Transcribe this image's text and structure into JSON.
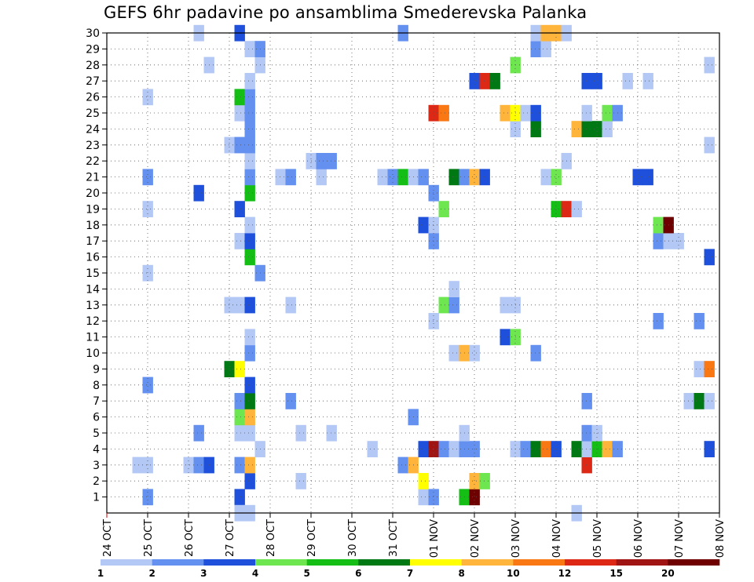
{
  "chart_data": {
    "type": "heatmap",
    "title": "GEFS 6hr padavine po ansamblima Smederevska Palanka",
    "xlabel": "",
    "ylabel": "",
    "x_ticks": [
      "24 OCT",
      "25 OCT",
      "26 OCT",
      "27 OCT",
      "28 OCT",
      "29 OCT",
      "30 OCT",
      "31 OCT",
      "01 NOV",
      "02 NOV",
      "03 NOV",
      "04 NOV",
      "05 NOV",
      "06 NOV",
      "07 NOV",
      "08 NOV"
    ],
    "y_ticks": [
      "1",
      "2",
      "3",
      "4",
      "5",
      "6",
      "7",
      "8",
      "9",
      "10",
      "11",
      "12",
      "13",
      "14",
      "15",
      "16",
      "17",
      "18",
      "19",
      "20",
      "21",
      "22",
      "23",
      "24",
      "25",
      "26",
      "27",
      "28",
      "29",
      "30"
    ],
    "x_range_days": [
      0,
      15
    ],
    "y_range": [
      0,
      30
    ],
    "grid": true,
    "colorbar": {
      "colors": [
        "#b4c8f5",
        "#6490f0",
        "#1e50dc",
        "#6ee650",
        "#14be14",
        "#007814",
        "#ffff00",
        "#ffb43c",
        "#fa7814",
        "#dc2814",
        "#a01414",
        "#6e0000"
      ],
      "labels": [
        "1",
        "2",
        "3",
        "4",
        "5",
        "6",
        "7",
        "8",
        "10",
        "12",
        "15",
        "20"
      ]
    },
    "cells": [
      {
        "day": 1.0,
        "m": 1,
        "c": 1
      },
      {
        "day": 3.25,
        "m": 1,
        "c": 2
      },
      {
        "day": 7.75,
        "m": 1,
        "c": 0
      },
      {
        "day": 8.0,
        "m": 1,
        "c": 1
      },
      {
        "day": 8.75,
        "m": 1,
        "c": 4
      },
      {
        "day": 9.0,
        "m": 1,
        "c": 11
      },
      {
        "day": 3.5,
        "m": 2,
        "c": 2
      },
      {
        "day": 4.75,
        "m": 2,
        "c": 0
      },
      {
        "day": 7.75,
        "m": 2,
        "c": 6
      },
      {
        "day": 9.0,
        "m": 2,
        "c": 7
      },
      {
        "day": 9.25,
        "m": 2,
        "c": 3
      },
      {
        "day": 0.75,
        "m": 3,
        "c": 0
      },
      {
        "day": 1.0,
        "m": 3,
        "c": 0
      },
      {
        "day": 2.0,
        "m": 3,
        "c": 0
      },
      {
        "day": 2.25,
        "m": 3,
        "c": 1
      },
      {
        "day": 2.5,
        "m": 3,
        "c": 2
      },
      {
        "day": 3.25,
        "m": 3,
        "c": 1
      },
      {
        "day": 3.5,
        "m": 3,
        "c": 7
      },
      {
        "day": 7.25,
        "m": 3,
        "c": 1
      },
      {
        "day": 7.5,
        "m": 3,
        "c": 7
      },
      {
        "day": 11.75,
        "m": 3,
        "c": 9
      },
      {
        "day": 3.75,
        "m": 4,
        "c": 0
      },
      {
        "day": 6.5,
        "m": 4,
        "c": 0
      },
      {
        "day": 7.75,
        "m": 4,
        "c": 2
      },
      {
        "day": 8.0,
        "m": 4,
        "c": 10
      },
      {
        "day": 8.25,
        "m": 4,
        "c": 1
      },
      {
        "day": 8.5,
        "m": 4,
        "c": 0
      },
      {
        "day": 8.75,
        "m": 4,
        "c": 1
      },
      {
        "day": 9.0,
        "m": 4,
        "c": 1
      },
      {
        "day": 10.0,
        "m": 4,
        "c": 0
      },
      {
        "day": 10.25,
        "m": 4,
        "c": 1
      },
      {
        "day": 10.5,
        "m": 4,
        "c": 5
      },
      {
        "day": 10.75,
        "m": 4,
        "c": 8
      },
      {
        "day": 11.0,
        "m": 4,
        "c": 2
      },
      {
        "day": 11.5,
        "m": 4,
        "c": 5
      },
      {
        "day": 11.75,
        "m": 4,
        "c": 0
      },
      {
        "day": 12.0,
        "m": 4,
        "c": 4
      },
      {
        "day": 12.25,
        "m": 4,
        "c": 7
      },
      {
        "day": 12.5,
        "m": 4,
        "c": 1
      },
      {
        "day": 14.75,
        "m": 4,
        "c": 2
      },
      {
        "day": 2.25,
        "m": 5,
        "c": 1
      },
      {
        "day": 3.25,
        "m": 5,
        "c": 0
      },
      {
        "day": 3.5,
        "m": 5,
        "c": 0
      },
      {
        "day": 4.75,
        "m": 5,
        "c": 0
      },
      {
        "day": 5.5,
        "m": 5,
        "c": 0
      },
      {
        "day": 8.75,
        "m": 5,
        "c": 0
      },
      {
        "day": 11.75,
        "m": 5,
        "c": 1
      },
      {
        "day": 12.0,
        "m": 5,
        "c": 0
      },
      {
        "day": 3.25,
        "m": 6,
        "c": 3
      },
      {
        "day": 3.5,
        "m": 6,
        "c": 7
      },
      {
        "day": 7.5,
        "m": 6,
        "c": 1
      },
      {
        "day": 3.25,
        "m": 7,
        "c": 1
      },
      {
        "day": 3.5,
        "m": 7,
        "c": 5
      },
      {
        "day": 4.5,
        "m": 7,
        "c": 1
      },
      {
        "day": 11.75,
        "m": 7,
        "c": 1
      },
      {
        "day": 14.25,
        "m": 7,
        "c": 0
      },
      {
        "day": 14.5,
        "m": 7,
        "c": 5
      },
      {
        "day": 14.75,
        "m": 7,
        "c": 0
      },
      {
        "day": 1.0,
        "m": 8,
        "c": 1
      },
      {
        "day": 3.5,
        "m": 8,
        "c": 2
      },
      {
        "day": 3.0,
        "m": 9,
        "c": 5
      },
      {
        "day": 3.25,
        "m": 9,
        "c": 6
      },
      {
        "day": 14.5,
        "m": 9,
        "c": 0
      },
      {
        "day": 14.75,
        "m": 9,
        "c": 8
      },
      {
        "day": 3.5,
        "m": 10,
        "c": 1
      },
      {
        "day": 8.5,
        "m": 10,
        "c": 0
      },
      {
        "day": 8.75,
        "m": 10,
        "c": 7
      },
      {
        "day": 9.0,
        "m": 10,
        "c": 0
      },
      {
        "day": 10.5,
        "m": 10,
        "c": 1
      },
      {
        "day": 3.5,
        "m": 11,
        "c": 0
      },
      {
        "day": 9.75,
        "m": 11,
        "c": 2
      },
      {
        "day": 10.0,
        "m": 11,
        "c": 3
      },
      {
        "day": 8.0,
        "m": 12,
        "c": 0
      },
      {
        "day": 13.5,
        "m": 12,
        "c": 1
      },
      {
        "day": 14.5,
        "m": 12,
        "c": 1
      },
      {
        "day": 3.0,
        "m": 13,
        "c": 0
      },
      {
        "day": 3.25,
        "m": 13,
        "c": 0
      },
      {
        "day": 3.5,
        "m": 13,
        "c": 2
      },
      {
        "day": 4.5,
        "m": 13,
        "c": 0
      },
      {
        "day": 8.25,
        "m": 13,
        "c": 3
      },
      {
        "day": 8.5,
        "m": 13,
        "c": 1
      },
      {
        "day": 9.75,
        "m": 13,
        "c": 0
      },
      {
        "day": 10.0,
        "m": 13,
        "c": 0
      },
      {
        "day": 8.5,
        "m": 14,
        "c": 0
      },
      {
        "day": 1.0,
        "m": 15,
        "c": 0
      },
      {
        "day": 3.75,
        "m": 15,
        "c": 1
      },
      {
        "day": 3.5,
        "m": 16,
        "c": 4
      },
      {
        "day": 14.75,
        "m": 16,
        "c": 2
      },
      {
        "day": 3.25,
        "m": 17,
        "c": 0
      },
      {
        "day": 3.5,
        "m": 17,
        "c": 2
      },
      {
        "day": 8.0,
        "m": 17,
        "c": 1
      },
      {
        "day": 13.5,
        "m": 17,
        "c": 1
      },
      {
        "day": 13.75,
        "m": 17,
        "c": 0
      },
      {
        "day": 14.0,
        "m": 17,
        "c": 0
      },
      {
        "day": 3.5,
        "m": 18,
        "c": 0
      },
      {
        "day": 7.75,
        "m": 18,
        "c": 2
      },
      {
        "day": 8.0,
        "m": 18,
        "c": 0
      },
      {
        "day": 13.5,
        "m": 18,
        "c": 3
      },
      {
        "day": 13.75,
        "m": 18,
        "c": 11
      },
      {
        "day": 1.0,
        "m": 19,
        "c": 0
      },
      {
        "day": 3.25,
        "m": 19,
        "c": 2
      },
      {
        "day": 8.25,
        "m": 19,
        "c": 3
      },
      {
        "day": 11.0,
        "m": 19,
        "c": 4
      },
      {
        "day": 11.25,
        "m": 19,
        "c": 9
      },
      {
        "day": 11.5,
        "m": 19,
        "c": 0
      },
      {
        "day": 2.25,
        "m": 20,
        "c": 2
      },
      {
        "day": 3.5,
        "m": 20,
        "c": 4
      },
      {
        "day": 8.0,
        "m": 20,
        "c": 1
      },
      {
        "day": 1.0,
        "m": 21,
        "c": 1
      },
      {
        "day": 3.5,
        "m": 21,
        "c": 1
      },
      {
        "day": 4.25,
        "m": 21,
        "c": 0
      },
      {
        "day": 4.5,
        "m": 21,
        "c": 1
      },
      {
        "day": 5.25,
        "m": 21,
        "c": 0
      },
      {
        "day": 6.75,
        "m": 21,
        "c": 0
      },
      {
        "day": 7.0,
        "m": 21,
        "c": 1
      },
      {
        "day": 7.25,
        "m": 21,
        "c": 4
      },
      {
        "day": 7.5,
        "m": 21,
        "c": 0
      },
      {
        "day": 7.75,
        "m": 21,
        "c": 1
      },
      {
        "day": 8.5,
        "m": 21,
        "c": 5
      },
      {
        "day": 8.75,
        "m": 21,
        "c": 1
      },
      {
        "day": 9.0,
        "m": 21,
        "c": 7
      },
      {
        "day": 9.25,
        "m": 21,
        "c": 2
      },
      {
        "day": 10.75,
        "m": 21,
        "c": 0
      },
      {
        "day": 11.0,
        "m": 21,
        "c": 3
      },
      {
        "day": 13.0,
        "m": 21,
        "c": 2
      },
      {
        "day": 13.25,
        "m": 21,
        "c": 2
      },
      {
        "day": 3.5,
        "m": 22,
        "c": 0
      },
      {
        "day": 5.0,
        "m": 22,
        "c": 0
      },
      {
        "day": 5.25,
        "m": 22,
        "c": 1
      },
      {
        "day": 5.5,
        "m": 22,
        "c": 1
      },
      {
        "day": 11.25,
        "m": 22,
        "c": 0
      },
      {
        "day": 3.0,
        "m": 23,
        "c": 0
      },
      {
        "day": 3.25,
        "m": 23,
        "c": 1
      },
      {
        "day": 3.5,
        "m": 23,
        "c": 1
      },
      {
        "day": 14.75,
        "m": 23,
        "c": 0
      },
      {
        "day": 3.5,
        "m": 24,
        "c": 1
      },
      {
        "day": 10.0,
        "m": 24,
        "c": 0
      },
      {
        "day": 10.5,
        "m": 24,
        "c": 5
      },
      {
        "day": 11.5,
        "m": 24,
        "c": 7
      },
      {
        "day": 11.75,
        "m": 24,
        "c": 5
      },
      {
        "day": 12.0,
        "m": 24,
        "c": 5
      },
      {
        "day": 12.25,
        "m": 24,
        "c": 0
      },
      {
        "day": 3.25,
        "m": 25,
        "c": 0
      },
      {
        "day": 3.5,
        "m": 25,
        "c": 1
      },
      {
        "day": 8.0,
        "m": 25,
        "c": 9
      },
      {
        "day": 8.25,
        "m": 25,
        "c": 8
      },
      {
        "day": 9.75,
        "m": 25,
        "c": 7
      },
      {
        "day": 10.0,
        "m": 25,
        "c": 6
      },
      {
        "day": 10.25,
        "m": 25,
        "c": 0
      },
      {
        "day": 10.5,
        "m": 25,
        "c": 2
      },
      {
        "day": 11.75,
        "m": 25,
        "c": 0
      },
      {
        "day": 12.25,
        "m": 25,
        "c": 3
      },
      {
        "day": 12.5,
        "m": 25,
        "c": 1
      },
      {
        "day": 1.0,
        "m": 26,
        "c": 0
      },
      {
        "day": 3.25,
        "m": 26,
        "c": 4
      },
      {
        "day": 3.5,
        "m": 26,
        "c": 1
      },
      {
        "day": 3.5,
        "m": 27,
        "c": 0
      },
      {
        "day": 9.0,
        "m": 27,
        "c": 2
      },
      {
        "day": 9.25,
        "m": 27,
        "c": 9
      },
      {
        "day": 9.5,
        "m": 27,
        "c": 5
      },
      {
        "day": 11.75,
        "m": 27,
        "c": 2
      },
      {
        "day": 12.0,
        "m": 27,
        "c": 2
      },
      {
        "day": 12.75,
        "m": 27,
        "c": 0
      },
      {
        "day": 13.25,
        "m": 27,
        "c": 0
      },
      {
        "day": 2.5,
        "m": 28,
        "c": 0
      },
      {
        "day": 3.75,
        "m": 28,
        "c": 0
      },
      {
        "day": 10.0,
        "m": 28,
        "c": 3
      },
      {
        "day": 14.75,
        "m": 28,
        "c": 0
      },
      {
        "day": 3.5,
        "m": 29,
        "c": 0
      },
      {
        "day": 3.75,
        "m": 29,
        "c": 1
      },
      {
        "day": 10.5,
        "m": 29,
        "c": 1
      },
      {
        "day": 10.75,
        "m": 29,
        "c": 0
      },
      {
        "day": 2.25,
        "m": 30,
        "c": 0
      },
      {
        "day": 3.25,
        "m": 30,
        "c": 2
      },
      {
        "day": 7.25,
        "m": 30,
        "c": 1
      },
      {
        "day": 10.5,
        "m": 30,
        "c": 0
      },
      {
        "day": 10.75,
        "m": 30,
        "c": 7
      },
      {
        "day": 11.0,
        "m": 30,
        "c": 7
      },
      {
        "day": 11.25,
        "m": 30,
        "c": 0
      },
      {
        "day": 3.25,
        "m": 0,
        "c": 0
      },
      {
        "day": 3.5,
        "m": 0,
        "c": 0
      },
      {
        "day": 11.5,
        "m": 0,
        "c": 0
      }
    ]
  }
}
